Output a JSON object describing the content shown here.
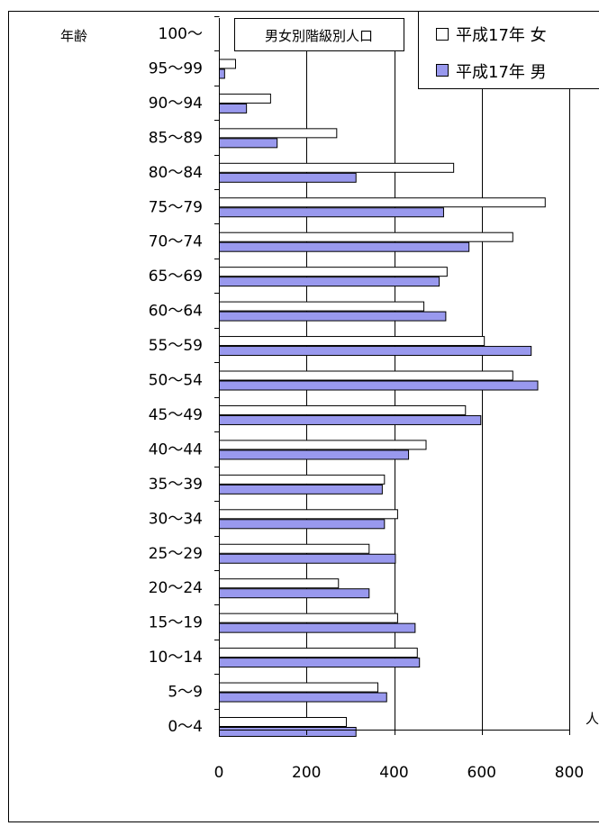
{
  "chart_data": {
    "type": "bar",
    "orientation": "horizontal",
    "title": "男女別階級別人口",
    "ylabel": "年齢",
    "xunit": "人",
    "categories": [
      "100～",
      "95～99",
      "90～94",
      "85～89",
      "80～84",
      "75～79",
      "70～74",
      "65～69",
      "60～64",
      "55～59",
      "50～54",
      "45～49",
      "40～44",
      "35～39",
      "30～34",
      "25～29",
      "20～24",
      "15～19",
      "10～14",
      "5～9",
      "0～4"
    ],
    "series": [
      {
        "name": "平成17年 女",
        "color": "#ffffff",
        "values": [
          0,
          37,
          117,
          268,
          535,
          744,
          670,
          520,
          467,
          605,
          670,
          562,
          472,
          377,
          407,
          342,
          272,
          407,
          452,
          362,
          290
        ]
      },
      {
        "name": "平成17年 男",
        "color": "#9999ee",
        "values": [
          0,
          12,
          62,
          132,
          312,
          512,
          570,
          502,
          517,
          712,
          727,
          597,
          432,
          372,
          377,
          402,
          342,
          447,
          457,
          382,
          312
        ]
      }
    ],
    "xlim": [
      0,
      800
    ],
    "xticks": [
      0,
      200,
      400,
      600,
      800
    ],
    "grid": true,
    "legend_position": "top-right"
  }
}
